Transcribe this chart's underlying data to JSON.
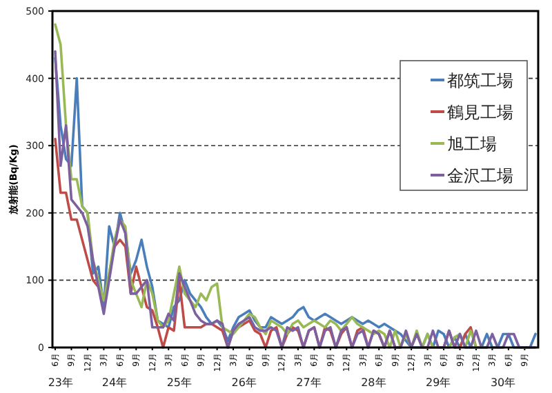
{
  "chart_data": {
    "type": "line",
    "ylabel": "放射能(Bq/Kg)",
    "categories": [
      "6月",
      null,
      null,
      "9月",
      null,
      null,
      "12月",
      null,
      null,
      "3月",
      null,
      null,
      "6月",
      null,
      null,
      "9月",
      null,
      null,
      "12月",
      null,
      null,
      "3月",
      null,
      null,
      "6月",
      null,
      null,
      "9月",
      null,
      null,
      "12月",
      null,
      null,
      "3月",
      null,
      null,
      "6月",
      null,
      null,
      "9月",
      null,
      null,
      "12月",
      null,
      null,
      "3月",
      null,
      null,
      "6月",
      null,
      null,
      "9月",
      null,
      null,
      "12月",
      null,
      null,
      "3月",
      null,
      null,
      "6月",
      null,
      null,
      "9月",
      null,
      null,
      "12月",
      null,
      null,
      "3月",
      null,
      null,
      "6月",
      null,
      null,
      "9月",
      null,
      null,
      "12月",
      null,
      null,
      "3月",
      null,
      null,
      "6月",
      null,
      null,
      "9月",
      null,
      null
    ],
    "annotations": [
      "23年",
      "24年",
      "25年",
      "26年",
      "27年",
      "28年",
      "29年",
      "30年"
    ],
    "ylim": [
      0,
      500
    ],
    "yticks": [
      0,
      100,
      200,
      300,
      400,
      500
    ],
    "grid": "y",
    "legend": "top right",
    "marker": "none",
    "line_style": "solid",
    "series": [
      {
        "name": "都筑工場",
        "color": "#4a7ebb",
        "values": [
          430,
          330,
          280,
          270,
          400,
          210,
          200,
          110,
          120,
          60,
          180,
          150,
          200,
          170,
          110,
          130,
          160,
          120,
          90,
          40,
          35,
          30,
          60,
          70,
          100,
          80,
          70,
          60,
          45,
          35,
          40,
          30,
          10,
          30,
          45,
          50,
          55,
          40,
          30,
          30,
          45,
          40,
          35,
          40,
          45,
          55,
          60,
          45,
          40,
          45,
          50,
          45,
          40,
          35,
          40,
          45,
          40,
          35,
          40,
          35,
          30,
          35,
          30,
          25,
          20,
          10,
          0,
          0,
          0,
          20,
          0,
          25,
          20,
          0,
          15,
          0,
          20,
          0,
          0,
          0,
          20,
          0,
          0,
          20,
          20,
          0,
          0,
          0,
          0,
          20
        ]
      },
      {
        "name": "鶴見工場",
        "color": "#be4b48",
        "values": [
          310,
          230,
          230,
          190,
          190,
          160,
          130,
          100,
          90,
          70,
          110,
          150,
          160,
          150,
          80,
          120,
          90,
          60,
          55,
          30,
          0,
          30,
          25,
          100,
          30,
          30,
          30,
          30,
          35,
          35,
          30,
          25,
          0,
          25,
          30,
          35,
          40,
          25,
          20,
          0,
          25,
          30,
          0,
          20,
          30,
          25,
          0,
          25,
          30,
          0,
          30,
          25,
          0,
          20,
          30,
          0,
          25,
          30,
          0,
          25,
          20,
          0,
          25,
          0,
          0,
          null,
          null,
          null,
          0,
          0,
          0,
          0,
          0,
          25,
          0,
          0,
          20,
          30,
          0,
          0,
          null,
          null,
          null,
          null,
          null,
          null,
          null,
          null,
          null,
          null
        ]
      },
      {
        "name": "旭工場",
        "color": "#98b954",
        "values": [
          480,
          450,
          330,
          250,
          250,
          210,
          200,
          130,
          100,
          70,
          110,
          160,
          190,
          180,
          100,
          80,
          60,
          100,
          80,
          40,
          30,
          40,
          80,
          120,
          80,
          70,
          60,
          80,
          70,
          90,
          95,
          30,
          25,
          20,
          30,
          40,
          50,
          45,
          30,
          20,
          40,
          35,
          30,
          20,
          35,
          40,
          30,
          35,
          40,
          35,
          30,
          40,
          35,
          25,
          35,
          45,
          35,
          30,
          25,
          20,
          25,
          20,
          0,
          25,
          0,
          20,
          0,
          25,
          0,
          20,
          0,
          0,
          0,
          0,
          15,
          20,
          0,
          25,
          0,
          0,
          0,
          null,
          null,
          null,
          null,
          null,
          null,
          null,
          null,
          null
        ]
      },
      {
        "name": "金沢工場",
        "color": "#7d60a0",
        "values": [
          440,
          270,
          330,
          220,
          210,
          200,
          180,
          130,
          90,
          50,
          100,
          150,
          190,
          170,
          80,
          80,
          90,
          100,
          30,
          30,
          30,
          50,
          40,
          110,
          90,
          70,
          50,
          40,
          35,
          35,
          40,
          35,
          0,
          25,
          35,
          40,
          45,
          30,
          25,
          25,
          30,
          25,
          0,
          30,
          25,
          30,
          0,
          25,
          30,
          0,
          25,
          30,
          0,
          25,
          30,
          0,
          20,
          25,
          0,
          25,
          20,
          0,
          25,
          0,
          0,
          25,
          0,
          20,
          0,
          0,
          25,
          0,
          0,
          25,
          0,
          20,
          0,
          0,
          25,
          0,
          0,
          20,
          0,
          0,
          20,
          20,
          0,
          0,
          0,
          0
        ]
      }
    ]
  }
}
